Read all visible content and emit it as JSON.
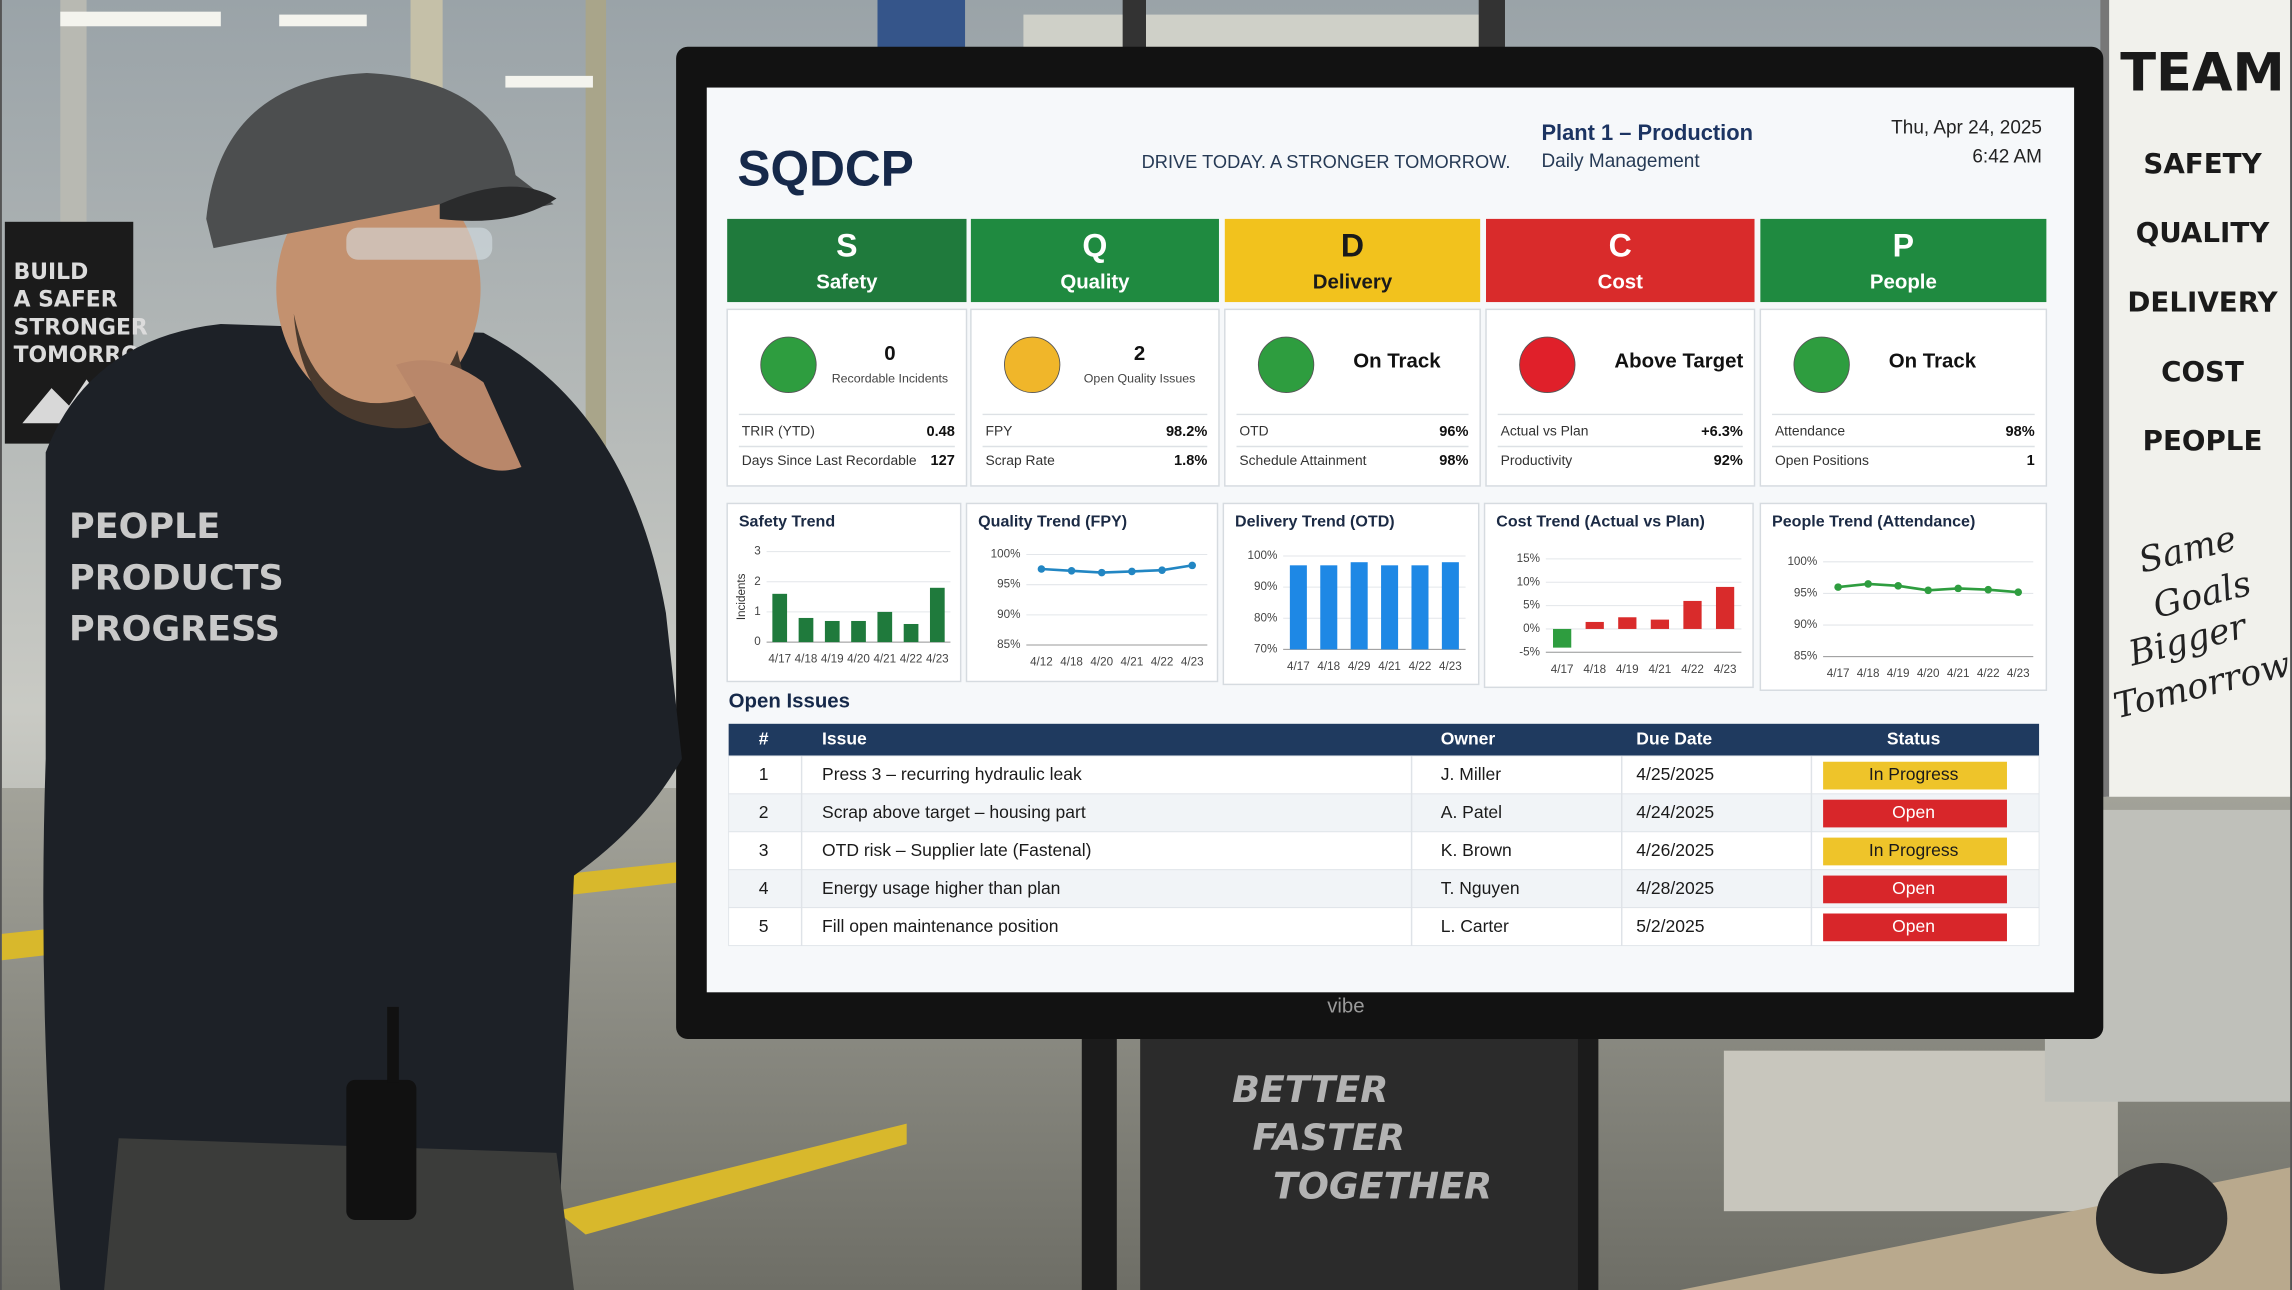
{
  "scene": {
    "banner": [
      "BUILD",
      "A SAFER",
      "STRONGER",
      "TOMORROW"
    ],
    "jacket": [
      "PEOPLE",
      "PRODUCTS",
      "PROGRESS"
    ],
    "whiteboard": {
      "title": "TEAM",
      "items": [
        "SAFETY",
        "QUALITY",
        "DELIVERY",
        "COST",
        "PEOPLE"
      ],
      "slogan": [
        "Same",
        "Goals",
        "Bigger",
        "Tomorrow"
      ]
    },
    "stand_sign": [
      "BETTER",
      "FASTER",
      "TOGETHER"
    ],
    "monitor_brand": "vibe"
  },
  "dashboard": {
    "title": "SQDCP",
    "tagline": "DRIVE TODAY. A STRONGER TOMORROW.",
    "plant": "Plant 1 – Production",
    "subtitle": "Daily Management",
    "date": "Thu, Apr 24, 2025",
    "time": "6:42 AM",
    "pillars": [
      {
        "letter": "S",
        "name": "Safety",
        "color": "#1f7a3c"
      },
      {
        "letter": "Q",
        "name": "Quality",
        "color": "#1f8a40"
      },
      {
        "letter": "D",
        "name": "Delivery",
        "color": "#f2c21d"
      },
      {
        "letter": "C",
        "name": "Cost",
        "color": "#d92b2b"
      },
      {
        "letter": "P",
        "name": "People",
        "color": "#1f8a40"
      }
    ],
    "cards": [
      {
        "status_color": "#2e9d3f",
        "headline": "0",
        "caption": "Recordable Incidents",
        "metrics": [
          [
            "TRIR (YTD)",
            "0.48"
          ],
          [
            "Days Since Last Recordable",
            "127"
          ]
        ]
      },
      {
        "status_color": "#f0b62a",
        "headline": "2",
        "caption": "Open Quality Issues",
        "metrics": [
          [
            "FPY",
            "98.2%"
          ],
          [
            "Scrap Rate",
            "1.8%"
          ]
        ]
      },
      {
        "status_color": "#2e9d3f",
        "headline": "On Track",
        "metrics": [
          [
            "OTD",
            "96%"
          ],
          [
            "Schedule Attainment",
            "98%"
          ]
        ]
      },
      {
        "status_color": "#e0202a",
        "headline": "Above Target",
        "metrics": [
          [
            "Actual vs Plan",
            "+6.3%"
          ],
          [
            "Productivity",
            "92%"
          ]
        ]
      },
      {
        "status_color": "#2e9d3f",
        "headline": "On Track",
        "metrics": [
          [
            "Attendance",
            "98%"
          ],
          [
            "Open Positions",
            "1"
          ]
        ]
      }
    ],
    "open_issues": {
      "title": "Open Issues",
      "columns": [
        "#",
        "Issue",
        "Owner",
        "Due Date",
        "Status"
      ],
      "rows": [
        [
          "1",
          "Press 3 – recurring hydraulic leak",
          "J. Miller",
          "4/25/2025",
          "In Progress"
        ],
        [
          "2",
          "Scrap above target – housing part",
          "A. Patel",
          "4/24/2025",
          "Open"
        ],
        [
          "3",
          "OTD risk – Supplier late (Fastenal)",
          "K. Brown",
          "4/26/2025",
          "In Progress"
        ],
        [
          "4",
          "Energy usage higher than plan",
          "T. Nguyen",
          "4/28/2025",
          "Open"
        ],
        [
          "5",
          "Fill open maintenance position",
          "L. Carter",
          "5/2/2025",
          "Open"
        ]
      ],
      "status_colors": [
        "#eec42a",
        "#d8262a",
        "#eec42a",
        "#d8262a",
        "#d8262a"
      ]
    }
  },
  "chart_data": [
    {
      "type": "bar",
      "title": "Safety Trend",
      "y_label": "Incidents",
      "categories": [
        "4/17",
        "4/18",
        "4/19",
        "4/20",
        "4/21",
        "4/22",
        "4/23"
      ],
      "values": [
        1.6,
        0.8,
        0.7,
        0.7,
        1.0,
        0.6,
        1.8
      ],
      "color": "#1f7a3c",
      "ylim": [
        0,
        3
      ],
      "yticks": [
        0,
        1,
        2,
        3
      ],
      "grid": true
    },
    {
      "type": "line",
      "title": "Quality Trend (FPY)",
      "categories": [
        "4/12",
        "4/18",
        "4/20",
        "4/21",
        "4/22",
        "4/23"
      ],
      "values": [
        97.6,
        97.3,
        97.0,
        97.2,
        97.4,
        98.2
      ],
      "color": "#2286c3",
      "ylim": [
        85,
        100
      ],
      "yticks": [
        {
          "value": 85,
          "label": "85%"
        },
        {
          "value": 90,
          "label": "90%"
        },
        {
          "value": 95,
          "label": "95%"
        },
        {
          "value": 100,
          "label": "100%"
        }
      ],
      "grid": true
    },
    {
      "type": "bar",
      "title": "Delivery Trend (OTD)",
      "categories": [
        "4/17",
        "4/18",
        "4/29",
        "4/21",
        "4/22",
        "4/23"
      ],
      "values": [
        97,
        97,
        98,
        97,
        97,
        98
      ],
      "color": "#1e88e5",
      "ylim": [
        70,
        100
      ],
      "yticks": [
        {
          "value": 70,
          "label": "70%"
        },
        {
          "value": 80,
          "label": "80%"
        },
        {
          "value": 90,
          "label": "90%"
        },
        {
          "value": 100,
          "label": "100%"
        }
      ],
      "grid": true
    },
    {
      "type": "bar",
      "title": "Cost Trend (Actual vs Plan)",
      "categories": [
        "4/17",
        "4/18",
        "4/19",
        "4/21",
        "4/22",
        "4/23"
      ],
      "values": [
        -4,
        1.5,
        2.5,
        2,
        6,
        9
      ],
      "colors": [
        "#2e9d3f",
        "#d92b2b",
        "#d92b2b",
        "#d92b2b",
        "#d92b2b",
        "#d92b2b"
      ],
      "ylim": [
        -5,
        15
      ],
      "yticks": [
        {
          "value": -5,
          "label": "-5%"
        },
        {
          "value": 0,
          "label": "0%"
        },
        {
          "value": 5,
          "label": "5%"
        },
        {
          "value": 10,
          "label": "10%"
        },
        {
          "value": 15,
          "label": "15%"
        }
      ],
      "grid": true
    },
    {
      "type": "line",
      "title": "People Trend (Attendance)",
      "categories": [
        "4/17",
        "4/18",
        "4/19",
        "4/20",
        "4/21",
        "4/22",
        "4/23"
      ],
      "values": [
        96.0,
        96.5,
        96.2,
        95.5,
        95.8,
        95.6,
        95.2
      ],
      "color": "#2e9d3f",
      "ylim": [
        85,
        100
      ],
      "yticks": [
        {
          "value": 85,
          "label": "85%"
        },
        {
          "value": 90,
          "label": "90%"
        },
        {
          "value": 95,
          "label": "95%"
        },
        {
          "value": 100,
          "label": "100%"
        }
      ],
      "grid": true
    }
  ]
}
